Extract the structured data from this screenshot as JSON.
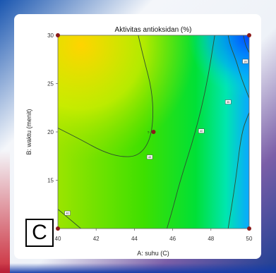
{
  "panel_label": "C",
  "colors": {
    "low": "#66cc00",
    "mid": "#00ee00",
    "high_yellow": "#ffd700",
    "high_blue": "#0044ff",
    "contour": "#2f4f2f",
    "design_point": "#8b1a1a"
  },
  "chart_data": {
    "type": "contour",
    "title": "Aktivitas antioksidan (%)",
    "xlabel": "A: suhu (C)",
    "ylabel": "B: waktu (menit)",
    "xlim": [
      40,
      50
    ],
    "ylim": [
      10,
      30
    ],
    "x_ticks": [
      "40",
      "42",
      "44",
      "46",
      "48",
      "50"
    ],
    "y_ticks": [
      "15",
      "20",
      "25",
      "30"
    ],
    "contours": [
      {
        "label": "45",
        "points": [
          [
            40,
            20.4
          ],
          [
            41.2,
            19.2
          ],
          [
            42.3,
            18.0
          ],
          [
            43.3,
            17.4
          ],
          [
            44.2,
            17.5
          ],
          [
            44.8,
            19.0
          ],
          [
            45.0,
            21.5
          ],
          [
            44.9,
            24.5
          ],
          [
            44.5,
            27.5
          ],
          [
            44.2,
            30
          ]
        ],
        "label_at": [
          44.8,
          17.4
        ]
      },
      {
        "label": "40",
        "points": [
          [
            48.2,
            30
          ],
          [
            47.8,
            25
          ],
          [
            47.2,
            20
          ],
          [
            46.4,
            15
          ],
          [
            46.0,
            12.0
          ],
          [
            45.7,
            10
          ]
        ],
        "label_at": [
          47.5,
          20.1
        ]
      },
      {
        "label": "35",
        "points": [
          [
            50.0,
            23.5
          ],
          [
            49.6,
            25.5
          ],
          [
            49.3,
            27.5
          ],
          [
            49.0,
            29.0
          ],
          [
            48.9,
            30
          ]
        ],
        "label_at": [
          48.9,
          23.1
        ]
      },
      {
        "label": "30",
        "points": [
          [
            50.0,
            28.2
          ],
          [
            49.8,
            29.0
          ],
          [
            49.7,
            30
          ]
        ],
        "label_at": [
          49.8,
          27.3
        ]
      },
      {
        "label": "40",
        "points": [
          [
            48.9,
            10
          ],
          [
            49.3,
            15
          ],
          [
            49.6,
            20
          ],
          [
            50.0,
            22.0
          ]
        ],
        "label_at": null
      },
      {
        "label": "40",
        "points": [
          [
            40,
            12.0
          ],
          [
            40.6,
            11.0
          ],
          [
            41.2,
            10
          ]
        ],
        "label_at": [
          40.5,
          11.6
        ]
      }
    ],
    "design_points": [
      [
        40,
        10
      ],
      [
        40,
        30
      ],
      [
        50,
        10
      ],
      [
        50,
        30
      ],
      [
        45,
        20
      ]
    ],
    "center_point_count": "5",
    "grid": false
  }
}
